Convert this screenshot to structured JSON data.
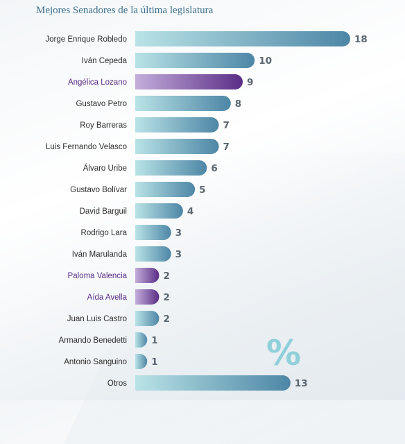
{
  "chart_data": {
    "type": "bar",
    "orientation": "horizontal",
    "title": "Mejores Senadores de la última legislatura",
    "categories": [
      "Jorge Enrique Robledo",
      "Iván Cepeda",
      "Angélica Lozano",
      "Gustavo Petro",
      "Roy Barreras",
      "Luis Fernando Velasco",
      "Álvaro Uribe",
      "Gustavo Bolívar",
      "David Barguil",
      "Rodrigo Lara",
      "Iván Marulanda",
      "Paloma  Valencia",
      "Aída Avella",
      "Juan Luis Castro",
      "Armando Benedetti",
      "Antonio Sanguino",
      "Otros"
    ],
    "values": [
      18,
      10,
      9,
      8,
      7,
      7,
      6,
      5,
      4,
      3,
      3,
      2,
      2,
      2,
      1,
      1,
      13
    ],
    "highlighted": [
      "Angélica Lozano",
      "Paloma  Valencia",
      "Aída Avella"
    ],
    "xlim": [
      0,
      18
    ],
    "grid": false,
    "colors": {
      "bar_start": "#b9e3e6",
      "bar_end": "#4d86a6",
      "highlight_start": "#c4aedb",
      "highlight_end": "#5a2d86",
      "label": "#2e2e2e",
      "highlight_label": "#5a2d86",
      "value": "#5b6670",
      "title": "#3d6f8c",
      "percent_sign": "#8fd0da"
    }
  },
  "decoration": {
    "percent_sign": "%"
  }
}
